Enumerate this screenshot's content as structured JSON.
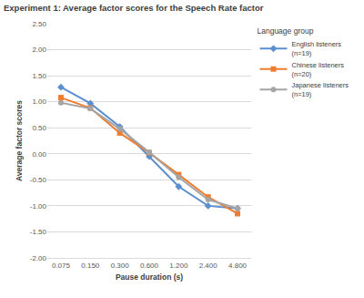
{
  "chart_data": {
    "type": "line",
    "title": "Experiment 1: Average factor scores for the Speech Rate factor",
    "x_label": "Pause duration (s)",
    "y_label": "Average factor scores",
    "legend_title": "Language group",
    "legend": "right",
    "grid": true,
    "categories": [
      "0.075",
      "0.150",
      "0.300",
      "0.600",
      "1.200",
      "2.400",
      "4.800"
    ],
    "ylim": [
      -2.0,
      2.5
    ],
    "yticks": [
      {
        "value": -2.0,
        "label": "-2.00"
      },
      {
        "value": -1.5,
        "label": "-1.50"
      },
      {
        "value": -1.0,
        "label": "-1.00"
      },
      {
        "value": -0.5,
        "label": "-0.50"
      },
      {
        "value": 0,
        "label": "0.00"
      },
      {
        "value": 0.5,
        "label": "0.50"
      },
      {
        "value": 1.0,
        "label": "1.00"
      },
      {
        "value": 1.5,
        "label": "1.50"
      },
      {
        "value": 2.0,
        "label": "2.00"
      },
      {
        "value": 2.5,
        "label": "2.50"
      }
    ],
    "series": [
      {
        "name": "English listeners (n=19)",
        "color": "#5b8fd0",
        "marker": "diamond",
        "values": [
          1.28,
          0.97,
          0.52,
          -0.05,
          -0.63,
          -1.0,
          -1.05
        ]
      },
      {
        "name": "Chinese listeners (n=20)",
        "color": "#ed7d31",
        "marker": "square",
        "values": [
          1.08,
          0.88,
          0.4,
          0.02,
          -0.4,
          -0.83,
          -1.15
        ]
      },
      {
        "name": "Japanese listeners (n=19)",
        "color": "#a5a5a5",
        "marker": "circle",
        "values": [
          0.98,
          0.87,
          0.48,
          0.03,
          -0.45,
          -0.88,
          -1.05
        ]
      }
    ]
  }
}
